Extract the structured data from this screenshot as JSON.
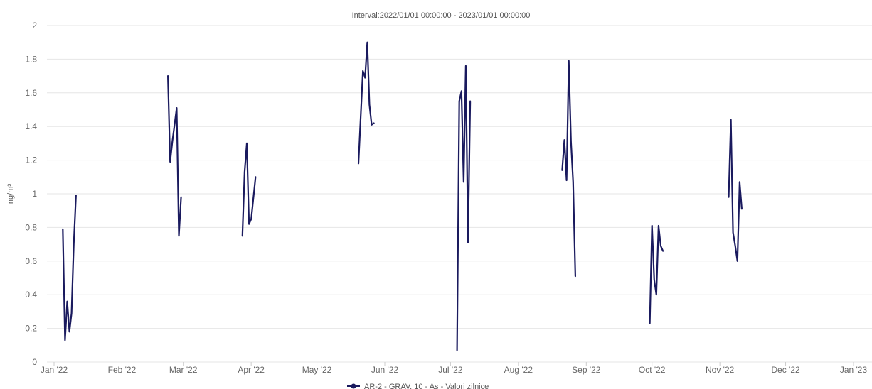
{
  "chart_data": {
    "type": "line",
    "title": "Interval:2022/01/01 00:00:00 - 2023/01/01 00:00:00",
    "ylabel": "ng/m³",
    "xlabel": "",
    "ylim": [
      0,
      2
    ],
    "yticks": [
      0,
      0.2,
      0.4,
      0.6,
      0.8,
      1,
      1.2,
      1.4,
      1.6,
      1.8,
      2
    ],
    "xlim": [
      "2022-01-01",
      "2023-01-01"
    ],
    "xticks": [
      {
        "date": "2022-01-01",
        "label": "Jan '22"
      },
      {
        "date": "2022-02-01",
        "label": "Feb '22"
      },
      {
        "date": "2022-03-01",
        "label": "Mar '22"
      },
      {
        "date": "2022-04-01",
        "label": "Apr '22"
      },
      {
        "date": "2022-05-01",
        "label": "May '22"
      },
      {
        "date": "2022-06-01",
        "label": "Jun '22"
      },
      {
        "date": "2022-07-01",
        "label": "Jul '22"
      },
      {
        "date": "2022-08-01",
        "label": "Aug '22"
      },
      {
        "date": "2022-09-01",
        "label": "Sep '22"
      },
      {
        "date": "2022-10-01",
        "label": "Oct '22"
      },
      {
        "date": "2022-11-01",
        "label": "Nov '22"
      },
      {
        "date": "2022-12-01",
        "label": "Dec '22"
      },
      {
        "date": "2023-01-01",
        "label": "Jan '23"
      }
    ],
    "grid": true,
    "legend_position": "bottom",
    "series": [
      {
        "name": "AR-2 - GRAV. 10 - As - Valori zilnice",
        "color": "#1a1a5e",
        "segments": [
          [
            [
              "2022-01-05",
              0.79
            ],
            [
              "2022-01-06",
              0.13
            ],
            [
              "2022-01-07",
              0.36
            ],
            [
              "2022-01-08",
              0.18
            ],
            [
              "2022-01-09",
              0.29
            ],
            [
              "2022-01-10",
              0.7
            ],
            [
              "2022-01-11",
              0.99
            ]
          ],
          [
            [
              "2022-02-22",
              1.7
            ],
            [
              "2022-02-23",
              1.19
            ],
            [
              "2022-02-24",
              1.31
            ],
            [
              "2022-02-25",
              1.41
            ],
            [
              "2022-02-26",
              1.51
            ],
            [
              "2022-02-27",
              0.75
            ],
            [
              "2022-02-28",
              0.98
            ]
          ],
          [
            [
              "2022-03-28",
              0.75
            ],
            [
              "2022-03-29",
              1.13
            ],
            [
              "2022-03-30",
              1.3
            ],
            [
              "2022-03-31",
              0.82
            ],
            [
              "2022-04-01",
              0.85
            ],
            [
              "2022-04-03",
              1.1
            ]
          ],
          [
            [
              "2022-05-20",
              1.18
            ],
            [
              "2022-05-22",
              1.73
            ],
            [
              "2022-05-23",
              1.69
            ],
            [
              "2022-05-24",
              1.9
            ],
            [
              "2022-05-25",
              1.53
            ],
            [
              "2022-05-26",
              1.41
            ],
            [
              "2022-05-27",
              1.42
            ]
          ],
          [
            [
              "2022-07-04",
              0.07
            ],
            [
              "2022-07-05",
              1.55
            ],
            [
              "2022-07-06",
              1.61
            ],
            [
              "2022-07-07",
              1.07
            ],
            [
              "2022-07-08",
              1.76
            ],
            [
              "2022-07-09",
              0.71
            ],
            [
              "2022-07-10",
              1.55
            ]
          ],
          [
            [
              "2022-08-21",
              1.14
            ],
            [
              "2022-08-22",
              1.32
            ],
            [
              "2022-08-23",
              1.08
            ],
            [
              "2022-08-24",
              1.79
            ],
            [
              "2022-08-25",
              1.31
            ],
            [
              "2022-08-26",
              1.07
            ],
            [
              "2022-08-27",
              0.51
            ]
          ],
          [
            [
              "2022-09-30",
              0.23
            ],
            [
              "2022-10-01",
              0.81
            ],
            [
              "2022-10-02",
              0.49
            ],
            [
              "2022-10-03",
              0.4
            ],
            [
              "2022-10-04",
              0.81
            ],
            [
              "2022-10-05",
              0.69
            ],
            [
              "2022-10-06",
              0.66
            ]
          ],
          [
            [
              "2022-11-05",
              0.98
            ],
            [
              "2022-11-06",
              1.44
            ],
            [
              "2022-11-07",
              0.77
            ],
            [
              "2022-11-08",
              0.69
            ],
            [
              "2022-11-09",
              0.6
            ],
            [
              "2022-11-10",
              1.07
            ],
            [
              "2022-11-11",
              0.91
            ]
          ]
        ]
      }
    ]
  }
}
